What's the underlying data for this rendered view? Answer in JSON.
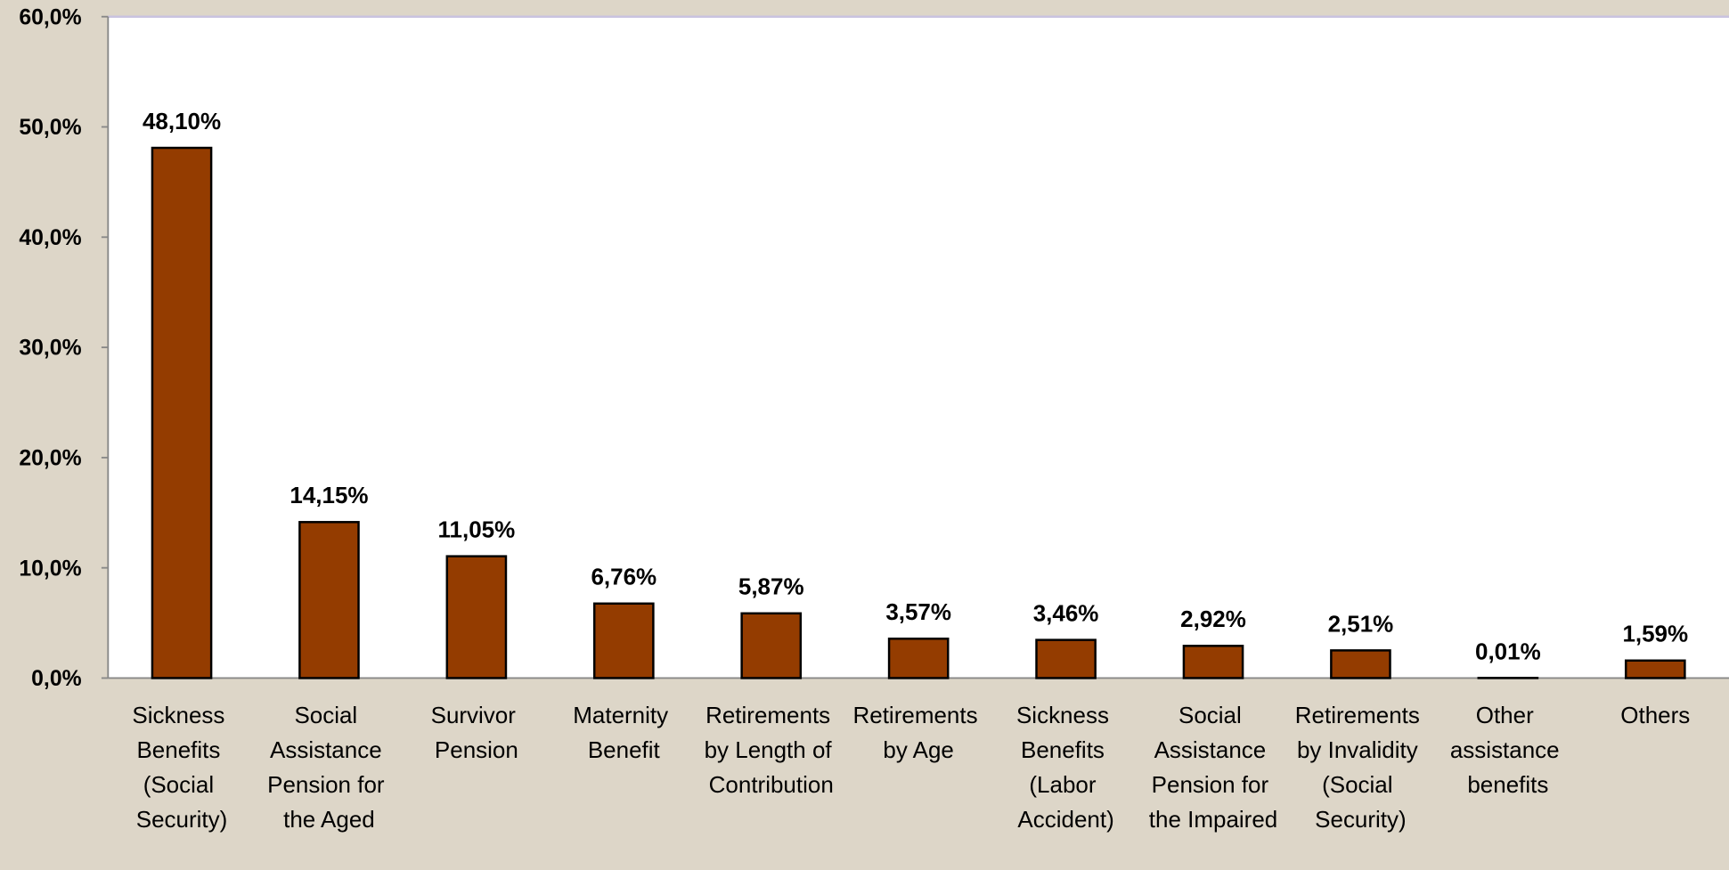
{
  "chart_data": {
    "type": "bar",
    "categories": [
      "Sickness Benefits (Social Security)",
      "Social Assistance Pension for the Aged",
      "Survivor Pension",
      "Maternity Benefit",
      "Retirements by Length of Contribution",
      "Retirements by Age",
      "Sickness Benefits (Labor Accident)",
      "Social Assistance Pension for the Impaired",
      "Retirements by Invalidity (Social Security)",
      "Other assistance benefits",
      "Others"
    ],
    "values": [
      48.1,
      14.15,
      11.05,
      6.76,
      5.87,
      3.57,
      3.46,
      2.92,
      2.51,
      0.01,
      1.59
    ],
    "value_labels": [
      "48,10%",
      "14,15%",
      "11,05%",
      "6,76%",
      "5,87%",
      "3,57%",
      "3,46%",
      "2,92%",
      "2,51%",
      "0,01%",
      "1,59%"
    ],
    "color": "#943c00",
    "ylim": [
      0,
      60
    ],
    "yticks": [
      {
        "value": 0,
        "label": "0,0%"
      },
      {
        "value": 10,
        "label": "10,0%"
      },
      {
        "value": 20,
        "label": "20,0%"
      },
      {
        "value": 30,
        "label": "30,0%"
      },
      {
        "value": 40,
        "label": "40,0%"
      },
      {
        "value": 50,
        "label": "50,0%"
      },
      {
        "value": 60,
        "label": "60,0%"
      }
    ],
    "grid": false
  }
}
